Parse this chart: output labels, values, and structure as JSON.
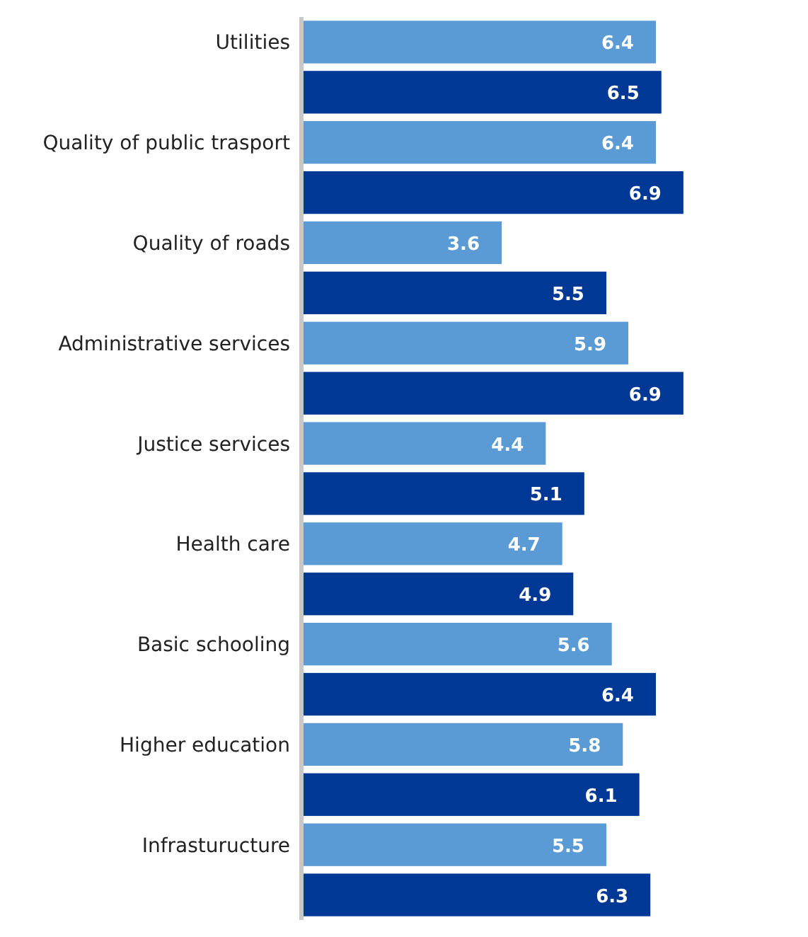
{
  "chart_data": {
    "type": "bar",
    "orientation": "horizontal",
    "categories": [
      "Utilities",
      "Quality of public trasport",
      "Quality of roads",
      "Administrative services",
      "Justice services",
      "Health care",
      "Basic schooling",
      "Higher education",
      "Infrasturucture"
    ],
    "series": [
      {
        "color": "#5b9bd5",
        "values": [
          6.4,
          6.4,
          3.6,
          5.9,
          4.4,
          4.7,
          5.6,
          5.8,
          5.5
        ]
      },
      {
        "color": "#003896",
        "values": [
          6.5,
          6.9,
          5.5,
          6.9,
          5.1,
          4.9,
          6.4,
          6.1,
          6.3
        ]
      }
    ],
    "tick_labels": "y",
    "data_labels": true
  }
}
